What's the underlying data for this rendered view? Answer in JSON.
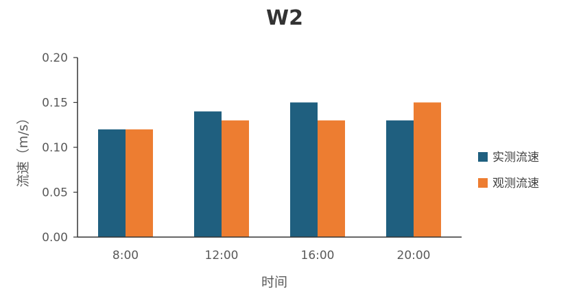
{
  "chart_data": {
    "type": "bar",
    "title": "W2",
    "xlabel": "时间",
    "ylabel": "流速（m/s）",
    "categories": [
      "8:00",
      "12:00",
      "16:00",
      "20:00"
    ],
    "series": [
      {
        "name": "实测流速",
        "values": [
          0.12,
          0.14,
          0.15,
          0.13
        ],
        "color": "#1f5f7f"
      },
      {
        "name": "观测流速",
        "values": [
          0.12,
          0.13,
          0.13,
          0.15
        ],
        "color": "#ed7d31"
      }
    ],
    "ylim": [
      0,
      0.2
    ],
    "yticks": [
      "0.00",
      "0.05",
      "0.10",
      "0.15",
      "0.20"
    ],
    "grid": false,
    "legend_position": "right"
  }
}
